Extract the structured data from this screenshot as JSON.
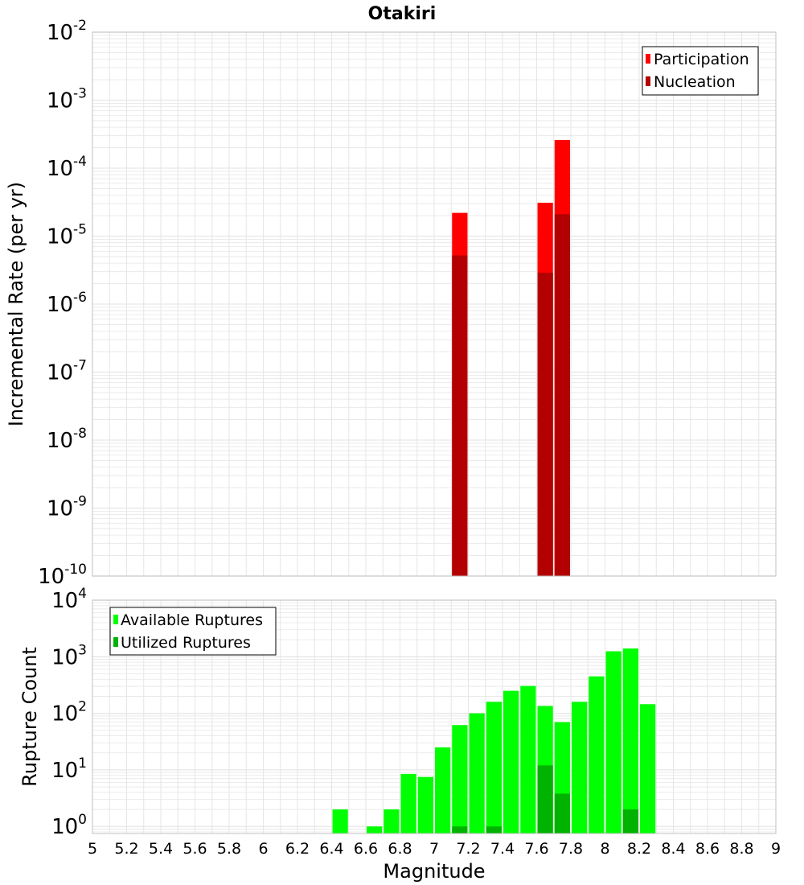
{
  "title": "Otakiri",
  "xlabel": "Magnitude",
  "colors": {
    "participation": "#ff0000",
    "nucleation": "#b30000",
    "available": "#00ff00",
    "utilized": "#00b300",
    "grid": "#e6e6e6",
    "frame": "#c0c0c0"
  },
  "chart_data": [
    {
      "type": "bar",
      "name": "rate",
      "ylabel": "Incremental Rate (per yr)",
      "yscale": "log",
      "ylim": [
        1e-10,
        0.01
      ],
      "xlim": [
        5,
        9
      ],
      "bin_width": 0.1,
      "legend": {
        "placement": "top-right",
        "entries": [
          "Participation",
          "Nucleation"
        ]
      },
      "series": [
        {
          "name": "Participation",
          "color": "#ff0000",
          "x": [
            7.15,
            7.65,
            7.75
          ],
          "values": [
            2.2e-05,
            3.1e-05,
            0.00026
          ]
        },
        {
          "name": "Nucleation",
          "color": "#b30000",
          "x": [
            7.15,
            7.65,
            7.75
          ],
          "values": [
            5.2e-06,
            2.9e-06,
            2.1e-05
          ]
        }
      ]
    },
    {
      "type": "bar",
      "name": "count",
      "ylabel": "Rupture Count",
      "yscale": "log",
      "ylim": [
        0.75,
        10000
      ],
      "xlim": [
        5,
        9
      ],
      "bin_width": 0.1,
      "legend": {
        "placement": "top-left",
        "entries": [
          "Available Ruptures",
          "Utilized Ruptures"
        ]
      },
      "series": [
        {
          "name": "Available Ruptures",
          "color": "#00ff00",
          "x": [
            6.45,
            6.65,
            6.75,
            6.85,
            6.95,
            7.05,
            7.15,
            7.25,
            7.35,
            7.45,
            7.55,
            7.65,
            7.75,
            7.85,
            7.95,
            8.05,
            8.15,
            8.25
          ],
          "values": [
            2,
            1,
            2,
            8.5,
            7.5,
            25,
            62,
            100,
            160,
            250,
            305,
            135,
            70,
            160,
            450,
            1250,
            1400,
            145
          ]
        },
        {
          "name": "Utilized Ruptures",
          "color": "#00b300",
          "x": [
            7.15,
            7.35,
            7.65,
            7.75,
            8.15
          ],
          "values": [
            1,
            1,
            12,
            3.8,
            2
          ]
        }
      ]
    }
  ],
  "x_ticks": [
    "5",
    "5.2",
    "5.4",
    "5.6",
    "5.8",
    "6",
    "6.2",
    "6.4",
    "6.6",
    "6.8",
    "7",
    "7.2",
    "7.4",
    "7.6",
    "7.8",
    "8",
    "8.2",
    "8.4",
    "8.6",
    "8.8",
    "9"
  ],
  "top_y_ticks": [
    {
      "base": "10",
      "exp": "-2"
    },
    {
      "base": "10",
      "exp": "-3"
    },
    {
      "base": "10",
      "exp": "-4"
    },
    {
      "base": "10",
      "exp": "-5"
    },
    {
      "base": "10",
      "exp": "-6"
    },
    {
      "base": "10",
      "exp": "-7"
    },
    {
      "base": "10",
      "exp": "-8"
    },
    {
      "base": "10",
      "exp": "-9"
    },
    {
      "base": "10",
      "exp": "-10"
    }
  ],
  "bottom_y_ticks": [
    {
      "base": "10",
      "exp": "4"
    },
    {
      "base": "10",
      "exp": "3"
    },
    {
      "base": "10",
      "exp": "2"
    },
    {
      "base": "10",
      "exp": "1"
    },
    {
      "base": "10",
      "exp": "0"
    }
  ]
}
